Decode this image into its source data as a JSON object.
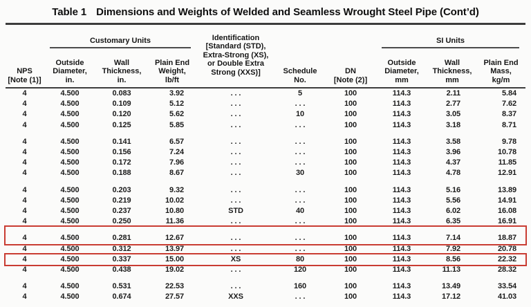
{
  "title": {
    "table_label": "Table 1",
    "table_title": "Dimensions and Weights of Welded and Seamless Wrought Steel Pipe (Cont’d)"
  },
  "header": {
    "nps": "NPS\n[Note (1)]",
    "customary_group": "Customary Units",
    "si_group": "SI Units",
    "od_in": "Outside\nDiameter,\nin.",
    "wall_in": "Wall\nThickness,\nin.",
    "weight_lbft": "Plain End\nWeight,\nlb/ft",
    "identification": "Identification\n[Standard (STD),\nExtra-Strong (XS),\nor Double Extra\nStrong (XXS)]",
    "schedule": "Schedule\nNo.",
    "dn": "DN\n[Note (2)]",
    "od_mm": "Outside\nDiameter,\nmm",
    "wall_mm": "Wall\nThickness,\nmm",
    "mass_kgm": "Plain End\nMass,\nkg/m"
  },
  "highlight": {
    "color": "#c93c32"
  },
  "table": {
    "groups": [
      [
        {
          "cells": [
            "4",
            "4.500",
            "0.083",
            "3.92",
            ". . .",
            "5",
            "100",
            "114.3",
            "2.11",
            "5.84"
          ]
        },
        {
          "cells": [
            "4",
            "4.500",
            "0.109",
            "5.12",
            ". . .",
            ". . .",
            "100",
            "114.3",
            "2.77",
            "7.62"
          ]
        },
        {
          "cells": [
            "4",
            "4.500",
            "0.120",
            "5.62",
            ". . .",
            "10",
            "100",
            "114.3",
            "3.05",
            "8.37"
          ]
        },
        {
          "cells": [
            "4",
            "4.500",
            "0.125",
            "5.85",
            ". . .",
            ". . .",
            "100",
            "114.3",
            "3.18",
            "8.71"
          ]
        }
      ],
      [
        {
          "cells": [
            "4",
            "4.500",
            "0.141",
            "6.57",
            ". . .",
            ". . .",
            "100",
            "114.3",
            "3.58",
            "9.78"
          ]
        },
        {
          "cells": [
            "4",
            "4.500",
            "0.156",
            "7.24",
            ". . .",
            ". . .",
            "100",
            "114.3",
            "3.96",
            "10.78"
          ]
        },
        {
          "cells": [
            "4",
            "4.500",
            "0.172",
            "7.96",
            ". . .",
            ". . .",
            "100",
            "114.3",
            "4.37",
            "11.85"
          ]
        },
        {
          "cells": [
            "4",
            "4.500",
            "0.188",
            "8.67",
            ". . .",
            "30",
            "100",
            "114.3",
            "4.78",
            "12.91"
          ]
        }
      ],
      [
        {
          "cells": [
            "4",
            "4.500",
            "0.203",
            "9.32",
            ". . .",
            ". . .",
            "100",
            "114.3",
            "5.16",
            "13.89"
          ]
        },
        {
          "cells": [
            "4",
            "4.500",
            "0.219",
            "10.02",
            ". . .",
            ". . .",
            "100",
            "114.3",
            "5.56",
            "14.91"
          ]
        },
        {
          "cells": [
            "4",
            "4.500",
            "0.237",
            "10.80",
            "STD",
            "40",
            "100",
            "114.3",
            "6.02",
            "16.08"
          ]
        },
        {
          "cells": [
            "4",
            "4.500",
            "0.250",
            "11.36",
            ". . .",
            ". . .",
            "100",
            "114.3",
            "6.35",
            "16.91"
          ]
        }
      ],
      [
        {
          "cells": [
            "4",
            "4.500",
            "0.281",
            "12.67",
            ". . .",
            ". . .",
            "100",
            "114.3",
            "7.14",
            "18.87"
          ],
          "highlight": true
        },
        {
          "cells": [
            "4",
            "4.500",
            "0.312",
            "13.97",
            ". . .",
            ". . .",
            "100",
            "114.3",
            "7.92",
            "20.78"
          ]
        },
        {
          "cells": [
            "4",
            "4.500",
            "0.337",
            "15.00",
            "XS",
            "80",
            "100",
            "114.3",
            "8.56",
            "22.32"
          ],
          "highlight": true
        },
        {
          "cells": [
            "4",
            "4.500",
            "0.438",
            "19.02",
            ". . .",
            "120",
            "100",
            "114.3",
            "11.13",
            "28.32"
          ]
        }
      ],
      [
        {
          "cells": [
            "4",
            "4.500",
            "0.531",
            "22.53",
            ". . .",
            "160",
            "100",
            "114.3",
            "13.49",
            "33.54"
          ]
        },
        {
          "cells": [
            "4",
            "4.500",
            "0.674",
            "27.57",
            "XXS",
            ". . .",
            "100",
            "114.3",
            "17.12",
            "41.03"
          ]
        }
      ]
    ]
  }
}
